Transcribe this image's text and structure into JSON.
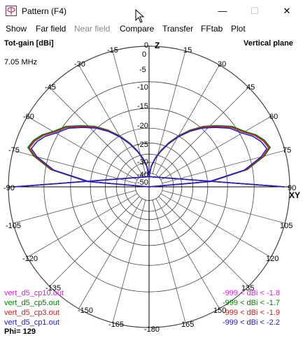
{
  "window": {
    "title": "Pattern   (F4)",
    "minimize": "—",
    "maximize": "☐",
    "close": "✕"
  },
  "menu": [
    {
      "label": "Show",
      "enabled": true
    },
    {
      "label": "Far field",
      "enabled": true
    },
    {
      "label": "Near field",
      "enabled": false
    },
    {
      "label": "Compare",
      "enabled": true
    },
    {
      "label": "Transfer",
      "enabled": true
    },
    {
      "label": "FFtab",
      "enabled": true
    },
    {
      "label": "Plot",
      "enabled": true
    }
  ],
  "plot": {
    "quantity_label": "Tot-gain [dBi]",
    "plane_label": "Vertical plane",
    "frequency": "7.05 MHz",
    "phi_label": "Phi= 129",
    "z_axis_label": "Z",
    "xy_axis_label": "XY",
    "ring_labels": [
      "0",
      "-5",
      "-10",
      "-15",
      "-20",
      "-25",
      "-30",
      "-40",
      "-50"
    ],
    "angle_labels_left": [
      "0",
      "-15",
      "-30",
      "-45",
      "-60",
      "-75",
      "-90",
      "-105",
      "-120",
      "-135",
      "-150",
      "-165",
      "-180"
    ],
    "angle_labels_right": [
      "15",
      "30",
      "45",
      "60",
      "75",
      "90",
      "105",
      "120",
      "135",
      "150",
      "165"
    ]
  },
  "chart_data": {
    "type": "polar",
    "plane": "Vertical plane",
    "quantity": "Tot-gain [dBi]",
    "frequency": "7.05 MHz",
    "phi": "129",
    "radial_ticks_dbi": [
      0,
      -5,
      -10,
      -15,
      -20,
      -25,
      -30,
      -40,
      -50
    ],
    "series": [
      {
        "name": "vert_d5_cp10.out",
        "color": "#e020e0",
        "range": "-999 < dBi < -1.8",
        "pattern": [
          [
            90,
            -50
          ],
          [
            85,
            -14
          ],
          [
            80,
            -6
          ],
          [
            75,
            -2.9
          ],
          [
            72,
            -1.8
          ],
          [
            68,
            -2.2
          ],
          [
            64,
            -3
          ],
          [
            60,
            -4.2
          ],
          [
            54,
            -5.5
          ],
          [
            48,
            -7.5
          ],
          [
            42,
            -9.5
          ],
          [
            36,
            -12
          ],
          [
            30,
            -15
          ],
          [
            24,
            -18.5
          ],
          [
            18,
            -22.5
          ],
          [
            12,
            -27
          ],
          [
            6,
            -33
          ],
          [
            0,
            -45
          ]
        ]
      },
      {
        "name": "vert_d5_cp5.out",
        "color": "#008000",
        "range": "-999 < dBi < -1.7",
        "pattern": [
          [
            90,
            -50
          ],
          [
            85,
            -14
          ],
          [
            80,
            -5.9
          ],
          [
            75,
            -2.8
          ],
          [
            72,
            -1.7
          ],
          [
            68,
            -2.1
          ],
          [
            64,
            -2.9
          ],
          [
            60,
            -4.1
          ],
          [
            54,
            -5.4
          ],
          [
            48,
            -7.4
          ],
          [
            42,
            -9.4
          ],
          [
            36,
            -11.9
          ],
          [
            30,
            -14.9
          ],
          [
            24,
            -18.4
          ],
          [
            18,
            -22.4
          ],
          [
            12,
            -26.9
          ],
          [
            6,
            -32.9
          ],
          [
            0,
            -45
          ]
        ]
      },
      {
        "name": "vert_d5_cp3.out",
        "color": "#cc2020",
        "range": "-999 < dBi < -1.9",
        "pattern": [
          [
            90,
            -50
          ],
          [
            85,
            -14.2
          ],
          [
            80,
            -6.1
          ],
          [
            75,
            -3
          ],
          [
            72,
            -1.9
          ],
          [
            68,
            -2.3
          ],
          [
            64,
            -3.1
          ],
          [
            60,
            -4.3
          ],
          [
            54,
            -5.6
          ],
          [
            48,
            -7.6
          ],
          [
            42,
            -9.6
          ],
          [
            36,
            -12.1
          ],
          [
            30,
            -15.1
          ],
          [
            24,
            -18.6
          ],
          [
            18,
            -22.6
          ],
          [
            12,
            -27.1
          ],
          [
            6,
            -33.1
          ],
          [
            0,
            -45
          ]
        ]
      },
      {
        "name": "vert_d5_cp1.out",
        "color": "#2020cc",
        "range": "-999 < dBi < -2.2",
        "pattern": [
          [
            90,
            -50
          ],
          [
            85,
            -14.5
          ],
          [
            80,
            -6.4
          ],
          [
            75,
            -3.3
          ],
          [
            72,
            -2.2
          ],
          [
            68,
            -2.6
          ],
          [
            64,
            -3.4
          ],
          [
            60,
            -4.6
          ],
          [
            54,
            -5.9
          ],
          [
            48,
            -7.9
          ],
          [
            42,
            -9.9
          ],
          [
            36,
            -12.4
          ],
          [
            30,
            -15.4
          ],
          [
            24,
            -18.9
          ],
          [
            18,
            -22.9
          ],
          [
            12,
            -27.4
          ],
          [
            6,
            -33.4
          ],
          [
            0,
            -45
          ]
        ]
      }
    ],
    "legend_placement": "bottom-left"
  }
}
